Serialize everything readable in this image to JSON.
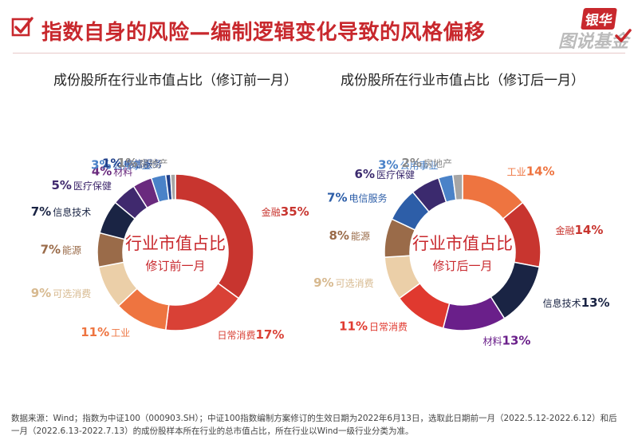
{
  "header": {
    "title": "指数自身的风险—编制逻辑变化导致的风格偏移",
    "brand_top": "银华",
    "brand_bottom": "图说基金"
  },
  "chart_data": [
    {
      "type": "pie",
      "title": "成份股所在行业市值占比（修订前一月）",
      "center_label": "行业市值占比",
      "center_sublabel": "修订前一月",
      "slices": [
        {
          "label": "金融",
          "value": 35,
          "display": "35%",
          "color": "#c8352f"
        },
        {
          "label": "日常消费",
          "value": 17,
          "display": "17%",
          "color": "#d94136"
        },
        {
          "label": "工业",
          "value": 11,
          "display": "11%",
          "color": "#ee7440"
        },
        {
          "label": "可选消费",
          "value": 9,
          "display": "9%",
          "color": "#ebcfa8"
        },
        {
          "label": "能源",
          "value": 7,
          "display": "7%",
          "color": "#9a6b49"
        },
        {
          "label": "信息技术",
          "value": 7,
          "display": "7%",
          "color": "#1a2444"
        },
        {
          "label": "医疗保健",
          "value": 5,
          "display": "5%",
          "color": "#40296e"
        },
        {
          "label": "材料",
          "value": 4,
          "display": "4%",
          "color": "#6a2a7e"
        },
        {
          "label": "公用事业",
          "value": 3,
          "display": "3%",
          "color": "#4a82c8"
        },
        {
          "label": "电信服务",
          "value": 1,
          "display": "1%",
          "color": "#1f3f8a"
        },
        {
          "label": "房地产",
          "value": 1,
          "display": "1%",
          "color": "#a6a6a6"
        }
      ]
    },
    {
      "type": "pie",
      "title": "成份股所在行业市值占比（修订后一月）",
      "center_label": "行业市值占比",
      "center_sublabel": "修订后一月",
      "slices": [
        {
          "label": "工业",
          "value": 14,
          "display": "14%",
          "color": "#ee7440"
        },
        {
          "label": "金融",
          "value": 14,
          "display": "14%",
          "color": "#c8352f"
        },
        {
          "label": "信息技术",
          "value": 13,
          "display": "13%",
          "color": "#1a2444"
        },
        {
          "label": "材料",
          "value": 13,
          "display": "13%",
          "color": "#6a1f8a"
        },
        {
          "label": "日常消费",
          "value": 11,
          "display": "11%",
          "color": "#e0392f"
        },
        {
          "label": "可选消费",
          "value": 9,
          "display": "9%",
          "color": "#ebcfa8"
        },
        {
          "label": "能源",
          "value": 8,
          "display": "8%",
          "color": "#9a6b49"
        },
        {
          "label": "电信服务",
          "value": 7,
          "display": "7%",
          "color": "#2d5ea8"
        },
        {
          "label": "医疗保健",
          "value": 6,
          "display": "6%",
          "color": "#3b2a6e"
        },
        {
          "label": "公用事业",
          "value": 3,
          "display": "3%",
          "color": "#4a82c8"
        },
        {
          "label": "房地产",
          "value": 2,
          "display": "2%",
          "color": "#a6a6a6"
        }
      ]
    }
  ],
  "footer": {
    "line1": "数据来源：Wind；指数为中证100（000903.SH）；中证100指数编制方案修订的生效日期为2022年6月13日，选取此日期前一月（2022.5.12-2022.6.12）和后",
    "line2": "一月（2022.6.13-2022.7.13）的成份股样本所在行业的总市值占比，所在行业以Wind一级行业分类为准。"
  }
}
